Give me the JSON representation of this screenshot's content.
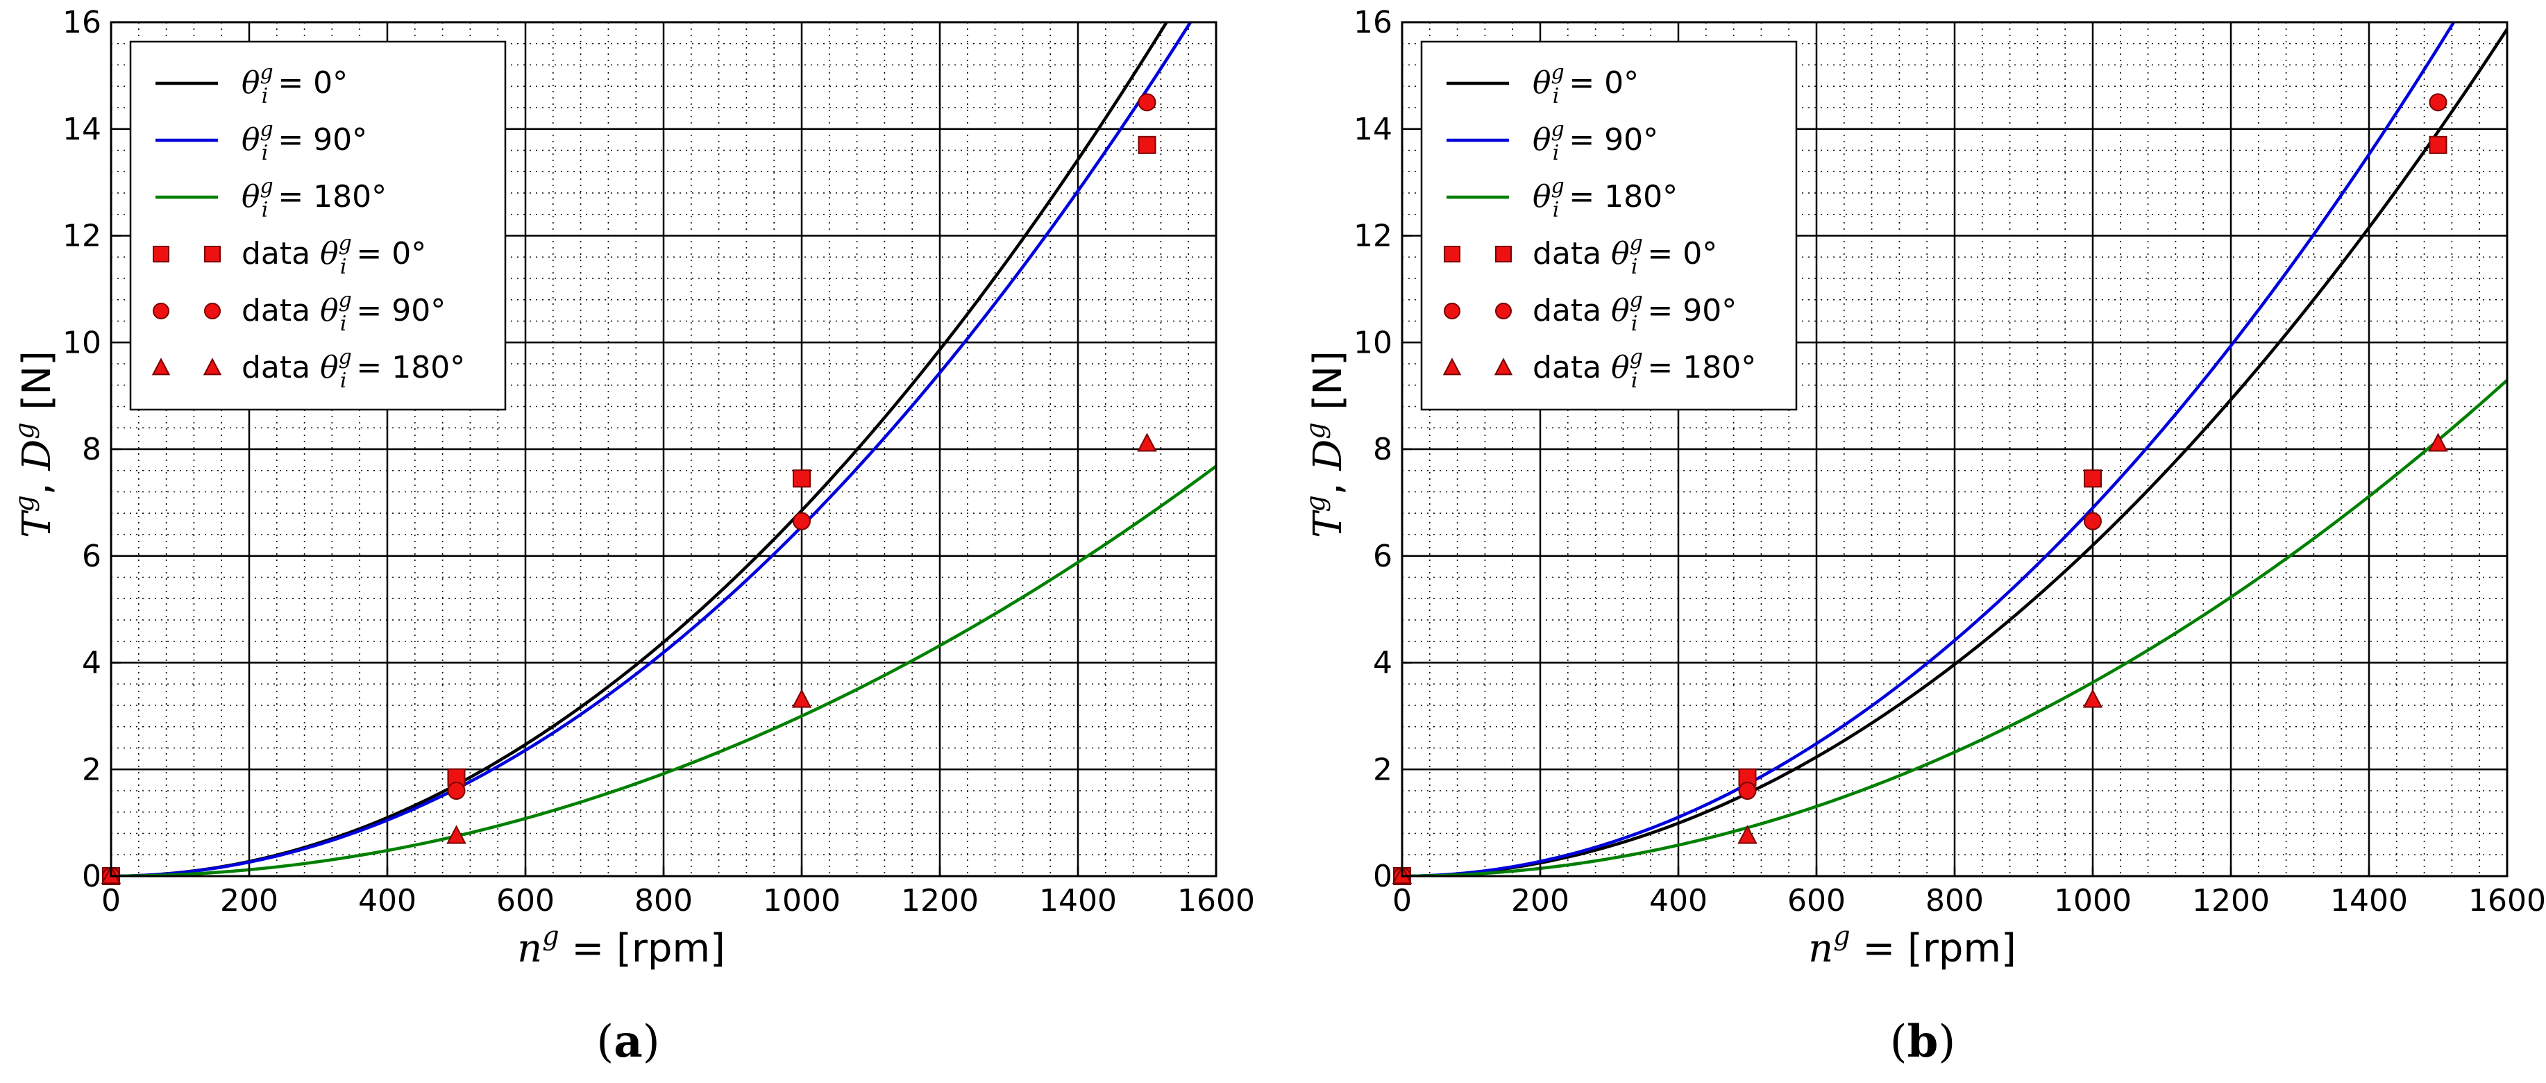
{
  "figure": {
    "panel_labels": [
      {
        "open": "(",
        "letter": "a",
        "close": ")"
      },
      {
        "open": "(",
        "letter": "b",
        "close": ")"
      }
    ]
  },
  "colors": {
    "black_curve": "#000000",
    "blue_curve": "#0000dd",
    "green_curve": "#008000",
    "marker_fill": "#ee1111",
    "marker_edge": "#7a0000",
    "grid_major": "#000000",
    "grid_minor": "#000000"
  },
  "chart_data": [
    {
      "type": "line",
      "panel": "a",
      "title": "",
      "xlabel": {
        "var": "n",
        "sup": "g",
        "rest": " = [rpm]"
      },
      "ylabel": {
        "t": "T",
        "d": "D",
        "sup": "g",
        "comma": ", ",
        "rest": " [N]"
      },
      "xlim": [
        0,
        1600
      ],
      "ylim": [
        0,
        16
      ],
      "xticks": [
        0,
        200,
        400,
        600,
        800,
        1000,
        1200,
        1400,
        1600
      ],
      "yticks": [
        0,
        2,
        4,
        6,
        8,
        10,
        12,
        14,
        16
      ],
      "grid": "major solid, minor dotted",
      "legend_location": "upper-left",
      "series": [
        {
          "name": "θ_i^g = 0°",
          "kind": "curve",
          "color": "#000000",
          "model": "y = k x^2",
          "k": 6.85e-06
        },
        {
          "name": "θ_i^g = 90°",
          "kind": "curve",
          "color": "#0000dd",
          "model": "y = k x^2",
          "k": 6.55e-06
        },
        {
          "name": "θ_i^g = 180°",
          "kind": "curve",
          "color": "#008000",
          "model": "y = k x^2",
          "k": 3e-06
        },
        {
          "name": "data θ_i^g = 0°",
          "kind": "marker",
          "marker": "square",
          "x": [
            0,
            500,
            1000,
            1500
          ],
          "y": [
            0,
            1.85,
            7.45,
            13.7
          ]
        },
        {
          "name": "data θ_i^g = 90°",
          "kind": "marker",
          "marker": "circle",
          "x": [
            0,
            500,
            1000,
            1500
          ],
          "y": [
            0,
            1.6,
            6.65,
            14.5
          ]
        },
        {
          "name": "data θ_i^g = 180°",
          "kind": "marker",
          "marker": "triangle",
          "x": [
            0,
            500,
            1000,
            1500
          ],
          "y": [
            0,
            0.75,
            3.3,
            8.1
          ]
        }
      ],
      "legend": [
        {
          "pre": "",
          "theta": "θ",
          "sup": "g",
          "sub": "i",
          "eq": " = 0°"
        },
        {
          "pre": "",
          "theta": "θ",
          "sup": "g",
          "sub": "i",
          "eq": " = 90°"
        },
        {
          "pre": "",
          "theta": "θ",
          "sup": "g",
          "sub": "i",
          "eq": " = 180°"
        },
        {
          "pre": "data ",
          "theta": "θ",
          "sup": "g",
          "sub": "i",
          "eq": " = 0°"
        },
        {
          "pre": "data ",
          "theta": "θ",
          "sup": "g",
          "sub": "i",
          "eq": " = 90°"
        },
        {
          "pre": "data ",
          "theta": "θ",
          "sup": "g",
          "sub": "i",
          "eq": " = 180°"
        }
      ]
    },
    {
      "type": "line",
      "panel": "b",
      "title": "",
      "xlabel": {
        "var": "n",
        "sup": "g",
        "rest": " = [rpm]"
      },
      "ylabel": {
        "t": "T",
        "d": "D",
        "sup": "g",
        "comma": ", ",
        "rest": " [N]"
      },
      "xlim": [
        0,
        1600
      ],
      "ylim": [
        0,
        16
      ],
      "xticks": [
        0,
        200,
        400,
        600,
        800,
        1000,
        1200,
        1400,
        1600
      ],
      "yticks": [
        0,
        2,
        4,
        6,
        8,
        10,
        12,
        14,
        16
      ],
      "grid": "major solid, minor dotted",
      "legend_location": "upper-left",
      "series": [
        {
          "name": "θ_i^g = 0°",
          "kind": "curve",
          "color": "#000000",
          "model": "y = k x^2",
          "k": 6.2e-06
        },
        {
          "name": "θ_i^g = 90°",
          "kind": "curve",
          "color": "#0000dd",
          "model": "y = k x^2",
          "k": 6.9e-06
        },
        {
          "name": "θ_i^g = 180°",
          "kind": "curve",
          "color": "#008000",
          "model": "y = k x^2",
          "k": 3.63e-06
        },
        {
          "name": "data θ_i^g = 0°",
          "kind": "marker",
          "marker": "square",
          "x": [
            0,
            500,
            1000,
            1500
          ],
          "y": [
            0,
            1.85,
            7.45,
            13.7
          ]
        },
        {
          "name": "data θ_i^g = 90°",
          "kind": "marker",
          "marker": "circle",
          "x": [
            0,
            500,
            1000,
            1500
          ],
          "y": [
            0,
            1.6,
            6.65,
            14.5
          ]
        },
        {
          "name": "data θ_i^g = 180°",
          "kind": "marker",
          "marker": "triangle",
          "x": [
            0,
            500,
            1000,
            1500
          ],
          "y": [
            0,
            0.75,
            3.3,
            8.1
          ]
        }
      ],
      "legend": [
        {
          "pre": "",
          "theta": "θ",
          "sup": "g",
          "sub": "i",
          "eq": " = 0°"
        },
        {
          "pre": "",
          "theta": "θ",
          "sup": "g",
          "sub": "i",
          "eq": " = 90°"
        },
        {
          "pre": "",
          "theta": "θ",
          "sup": "g",
          "sub": "i",
          "eq": " = 180°"
        },
        {
          "pre": "data ",
          "theta": "θ",
          "sup": "g",
          "sub": "i",
          "eq": " = 0°"
        },
        {
          "pre": "data ",
          "theta": "θ",
          "sup": "g",
          "sub": "i",
          "eq": " = 90°"
        },
        {
          "pre": "data ",
          "theta": "θ",
          "sup": "g",
          "sub": "i",
          "eq": " = 180°"
        }
      ]
    }
  ]
}
